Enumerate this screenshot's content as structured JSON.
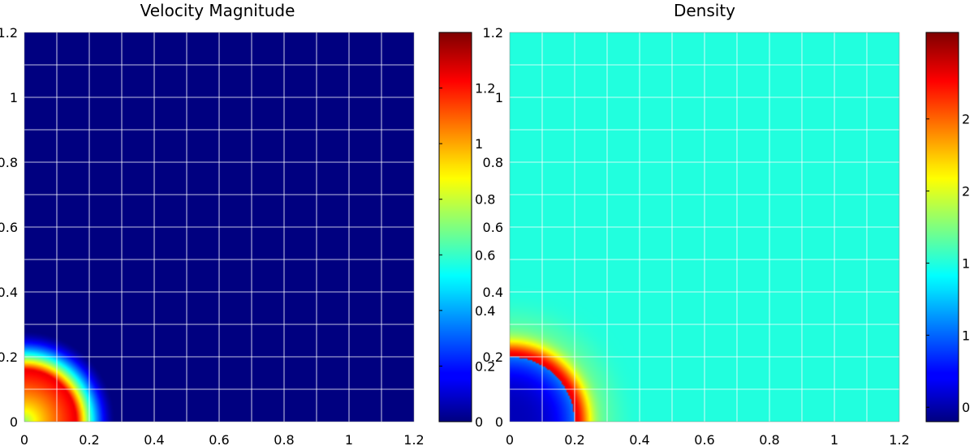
{
  "chart_data": [
    {
      "type": "heatmap",
      "title": "Velocity Magnitude",
      "xlim": [
        0,
        1.2
      ],
      "ylim": [
        0,
        1.2
      ],
      "x_ticks": [
        "0",
        "0.2",
        "0.4",
        "0.6",
        "0.8",
        "1",
        "1.2"
      ],
      "y_ticks": [
        "0",
        "0.2",
        "0.4",
        "0.6",
        "0.8",
        "1",
        "1.2"
      ],
      "grid": true,
      "grid_color": "#ffffff",
      "background_value": 0,
      "field": {
        "shape": "quarter-disc hot spot at origin",
        "peak_value": 1.25,
        "peak_radius": 0.16,
        "falloff_radius": 0.28
      },
      "colorbar": {
        "colormap": "jet",
        "clim": [
          0,
          1.4
        ],
        "ticks": [
          "0",
          "0.2",
          "0.4",
          "0.6",
          "0.8",
          "1",
          "1.2"
        ],
        "tick_values": [
          0,
          0.2,
          0.4,
          0.6,
          0.8,
          1.0,
          1.2
        ]
      }
    },
    {
      "type": "heatmap",
      "title": "Density",
      "xlim": [
        0,
        1.2
      ],
      "ylim": [
        0,
        1.2
      ],
      "x_ticks": [
        "0",
        "0.2",
        "0.4",
        "0.6",
        "0.8",
        "1",
        "1.2"
      ],
      "y_ticks": [
        "0",
        "0.2",
        "0.4",
        "0.6",
        "0.8",
        "1",
        "1.2"
      ],
      "grid": true,
      "grid_color": "#ffffff",
      "background_value": 1,
      "field": {
        "shape": "low-density core with high-density ring (shock front)",
        "core_value": 0.05,
        "ring_value": 2.3,
        "ring_radius": 0.2,
        "ring_width": 0.05
      },
      "colorbar": {
        "colormap": "jet",
        "clim": [
          -0.1,
          2.6
        ],
        "ticks": [
          "0",
          "1",
          "1",
          "2",
          "2"
        ],
        "tick_values": [
          0,
          0.5,
          1.0,
          1.5,
          2.0
        ]
      }
    }
  ]
}
